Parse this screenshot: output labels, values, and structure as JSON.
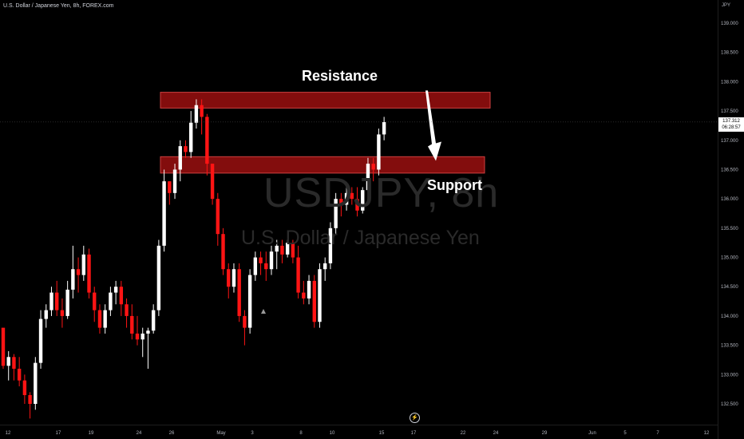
{
  "header": {
    "symbol_title": "U.S. Dollar / Japanese Yen, 8h, FOREX.com",
    "axis_unit": "JPY"
  },
  "watermark": {
    "symbol": "USDJPY, 8h",
    "name": "U.S. Dollar / Japanese Yen"
  },
  "current_price": {
    "value": "137.312",
    "countdown": "06:28:57"
  },
  "colors": {
    "background": "#000000",
    "up": "#ffffff",
    "down": "#ff1414",
    "zone": "#8b0e0e",
    "zone_border": "#d84444",
    "axis_text": "#b2b5be"
  },
  "icons": {
    "flash": "lightning-icon"
  },
  "chart_data": {
    "type": "candlestick",
    "title": "U.S. Dollar / Japanese Yen, 8h, FOREX.com",
    "ylabel": "JPY",
    "ylim": [
      132.25,
      139.2
    ],
    "y_ticks": [
      "139.000",
      "138.500",
      "138.000",
      "137.500",
      "137.000",
      "136.500",
      "136.000",
      "135.500",
      "135.000",
      "134.500",
      "134.000",
      "133.500",
      "133.000",
      "132.500"
    ],
    "x_ticks": [
      "12",
      "17",
      "19",
      "24",
      "26",
      "May",
      "3",
      "8",
      "10",
      "15",
      "17",
      "22",
      "24",
      "29",
      "Jun",
      "5",
      "7",
      "12"
    ],
    "candles": [
      [
        133.8,
        133.75,
        133.1,
        133.15
      ],
      [
        133.15,
        133.4,
        132.9,
        133.3
      ],
      [
        133.3,
        133.35,
        132.9,
        133.1
      ],
      [
        133.1,
        133.3,
        132.8,
        132.9
      ],
      [
        132.9,
        133.0,
        132.5,
        132.65
      ],
      [
        132.65,
        132.7,
        132.25,
        132.5
      ],
      [
        132.5,
        133.3,
        132.4,
        133.2
      ],
      [
        133.2,
        134.1,
        133.1,
        133.95
      ],
      [
        133.95,
        134.2,
        133.8,
        134.1
      ],
      [
        134.1,
        134.5,
        134.0,
        134.4
      ],
      [
        134.4,
        134.6,
        134.0,
        134.1
      ],
      [
        134.1,
        134.3,
        133.8,
        134.0
      ],
      [
        134.0,
        134.6,
        133.95,
        134.45
      ],
      [
        134.45,
        135.2,
        134.3,
        134.8
      ],
      [
        134.8,
        135.0,
        134.4,
        134.7
      ],
      [
        134.7,
        135.2,
        134.6,
        135.05
      ],
      [
        135.05,
        135.15,
        134.3,
        134.4
      ],
      [
        134.4,
        134.5,
        133.9,
        134.1
      ],
      [
        134.1,
        134.2,
        133.7,
        133.8
      ],
      [
        133.8,
        134.2,
        133.7,
        134.1
      ],
      [
        134.1,
        134.5,
        134.0,
        134.4
      ],
      [
        134.4,
        134.6,
        134.2,
        134.5
      ],
      [
        134.5,
        134.6,
        134.0,
        134.2
      ],
      [
        134.2,
        134.3,
        133.8,
        134.0
      ],
      [
        134.0,
        134.2,
        133.6,
        133.7
      ],
      [
        133.7,
        134.0,
        133.5,
        133.6
      ],
      [
        133.6,
        133.8,
        133.3,
        133.7
      ],
      [
        133.7,
        133.8,
        133.1,
        133.75
      ],
      [
        133.75,
        134.2,
        133.7,
        134.1
      ],
      [
        134.1,
        135.3,
        134.0,
        135.2
      ],
      [
        135.2,
        136.5,
        135.1,
        136.3
      ],
      [
        136.3,
        136.3,
        135.9,
        136.1
      ],
      [
        136.1,
        136.6,
        136.0,
        136.5
      ],
      [
        136.5,
        137.0,
        136.3,
        136.9
      ],
      [
        136.9,
        137.0,
        136.7,
        136.8
      ],
      [
        136.8,
        137.5,
        136.7,
        137.3
      ],
      [
        137.3,
        137.7,
        137.2,
        137.6
      ],
      [
        137.6,
        137.7,
        137.1,
        137.4
      ],
      [
        137.4,
        137.45,
        136.4,
        136.6
      ],
      [
        136.6,
        136.6,
        135.9,
        136.0
      ],
      [
        136.0,
        136.1,
        135.2,
        135.4
      ],
      [
        135.4,
        135.5,
        134.7,
        134.8
      ],
      [
        134.8,
        134.9,
        134.3,
        134.5
      ],
      [
        134.5,
        134.9,
        134.4,
        134.8
      ],
      [
        134.8,
        134.9,
        133.9,
        134.0
      ],
      [
        134.0,
        134.1,
        133.5,
        133.8
      ],
      [
        133.8,
        134.8,
        133.7,
        134.7
      ],
      [
        134.7,
        135.1,
        134.6,
        135.0
      ],
      [
        135.0,
        135.1,
        134.7,
        134.9
      ],
      [
        134.9,
        135.1,
        134.6,
        134.8
      ],
      [
        134.8,
        135.2,
        134.7,
        135.1
      ],
      [
        135.1,
        135.3,
        134.8,
        135.2
      ],
      [
        135.2,
        135.3,
        134.9,
        135.05
      ],
      [
        135.05,
        135.3,
        135.0,
        135.25
      ],
      [
        135.25,
        135.3,
        134.9,
        135.0
      ],
      [
        135.0,
        135.2,
        134.3,
        134.4
      ],
      [
        134.4,
        134.6,
        134.2,
        134.3
      ],
      [
        134.3,
        134.7,
        134.2,
        134.6
      ],
      [
        134.6,
        134.7,
        133.8,
        133.9
      ],
      [
        133.9,
        134.9,
        133.8,
        134.8
      ],
      [
        134.8,
        135.0,
        134.6,
        134.9
      ],
      [
        134.9,
        135.6,
        134.8,
        135.5
      ],
      [
        135.5,
        136.1,
        135.4,
        136.0
      ],
      [
        136.0,
        136.1,
        135.7,
        135.9
      ],
      [
        135.9,
        136.2,
        135.8,
        136.1
      ],
      [
        136.1,
        136.2,
        135.9,
        136.0
      ],
      [
        136.0,
        136.2,
        135.7,
        135.8
      ],
      [
        135.8,
        136.2,
        135.75,
        136.15
      ],
      [
        136.15,
        136.7,
        136.1,
        136.6
      ],
      [
        136.6,
        136.7,
        136.3,
        136.5
      ],
      [
        136.5,
        137.2,
        136.4,
        137.1
      ],
      [
        137.1,
        137.4,
        137.0,
        137.31
      ]
    ],
    "zones": [
      {
        "label": "Resistance",
        "low": 137.55,
        "high": 137.82
      },
      {
        "label": "Support",
        "low": 136.44,
        "high": 136.72
      }
    ],
    "annotation": {
      "type": "arrow",
      "from_price": 137.85,
      "to_price": 136.65
    },
    "last_price": 137.312
  }
}
